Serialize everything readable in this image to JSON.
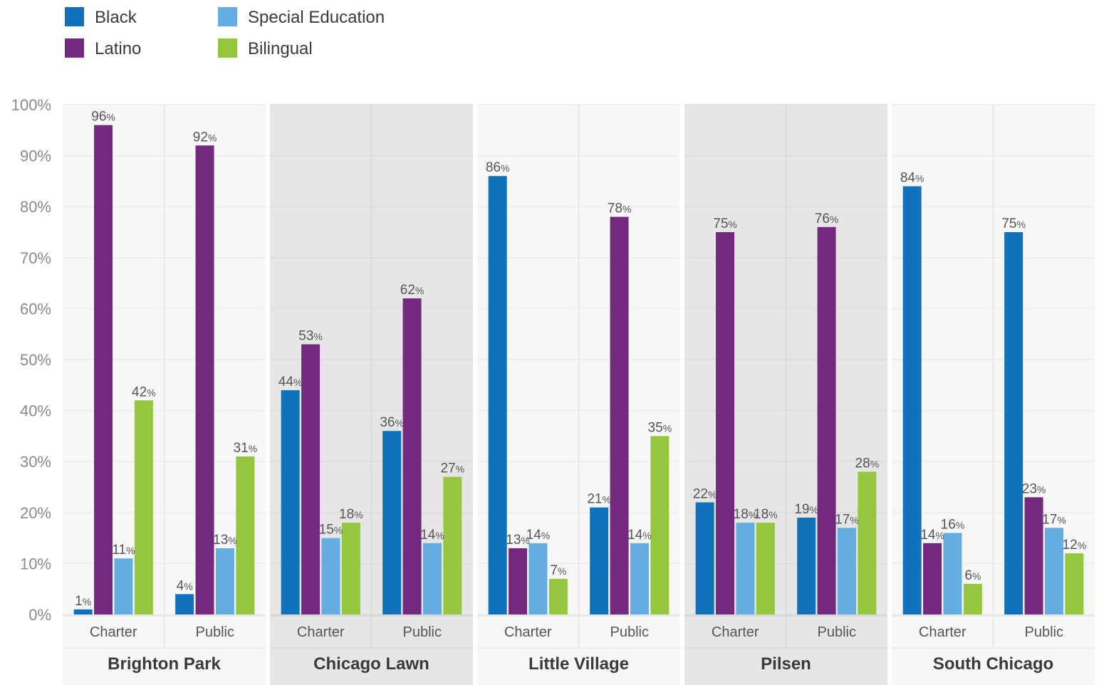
{
  "chart_data": {
    "type": "bar",
    "ylim": [
      0,
      100
    ],
    "y_ticks": [
      "0%",
      "10%",
      "20%",
      "30%",
      "40%",
      "50%",
      "60%",
      "70%",
      "80%",
      "90%",
      "100%"
    ],
    "value_suffix": "%",
    "grid": true,
    "legend_position": "top-left",
    "series": [
      {
        "name": "Black",
        "color": "#1072ba"
      },
      {
        "name": "Latino",
        "color": "#732a7e"
      },
      {
        "name": "Special Education",
        "color": "#64ade0"
      },
      {
        "name": "Bilingual",
        "color": "#94c640"
      }
    ],
    "groups": [
      {
        "name": "Brighton Park",
        "shaded": false,
        "subgroups": [
          {
            "label": "Charter",
            "values": [
              1,
              96,
              11,
              42
            ]
          },
          {
            "label": "Public",
            "values": [
              4,
              92,
              13,
              31
            ]
          }
        ]
      },
      {
        "name": "Chicago Lawn",
        "shaded": true,
        "subgroups": [
          {
            "label": "Charter",
            "values": [
              44,
              53,
              15,
              18
            ]
          },
          {
            "label": "Public",
            "values": [
              36,
              62,
              14,
              27
            ]
          }
        ]
      },
      {
        "name": "Little Village",
        "shaded": false,
        "subgroups": [
          {
            "label": "Charter",
            "values": [
              86,
              13,
              14,
              7
            ]
          },
          {
            "label": "Public",
            "values": [
              21,
              78,
              14,
              35
            ]
          }
        ]
      },
      {
        "name": "Pilsen",
        "shaded": true,
        "subgroups": [
          {
            "label": "Charter",
            "values": [
              22,
              75,
              18,
              18
            ]
          },
          {
            "label": "Public",
            "values": [
              19,
              76,
              17,
              28
            ]
          }
        ]
      },
      {
        "name": "South Chicago",
        "shaded": false,
        "subgroups": [
          {
            "label": "Charter",
            "values": [
              84,
              14,
              16,
              6
            ]
          },
          {
            "label": "Public",
            "values": [
              75,
              23,
              17,
              12
            ]
          }
        ]
      }
    ]
  }
}
